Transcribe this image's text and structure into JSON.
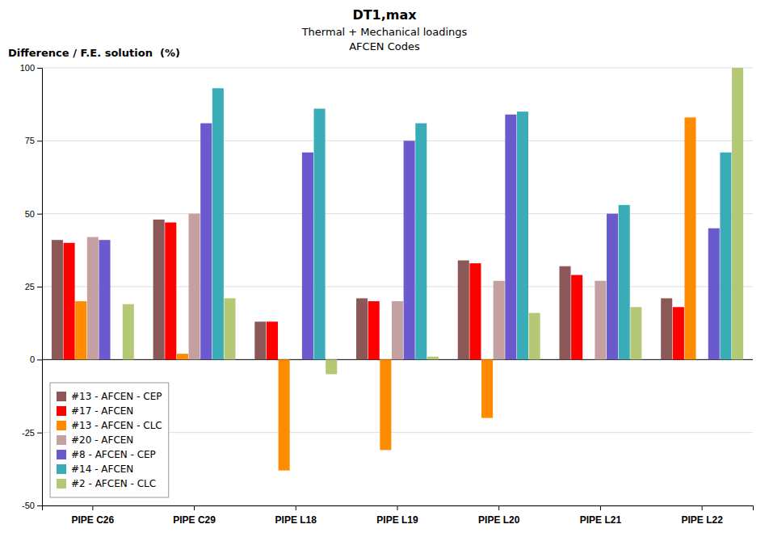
{
  "chart_data": {
    "type": "bar",
    "title": "DT1,max",
    "annotations": [
      "Thermal + Mechanical loadings",
      "AFCEN Codes"
    ],
    "ylabel": "Difference / F.E. solution  (%)",
    "categories": [
      "PIPE C26",
      "PIPE C29",
      "PIPE L18",
      "PIPE L19",
      "PIPE L20",
      "PIPE L21",
      "PIPE L22"
    ],
    "series": [
      {
        "name": "#13 - AFCEN - CEP",
        "color": "#8B5757",
        "values": [
          41,
          48,
          13,
          21,
          34,
          32,
          21
        ]
      },
      {
        "name": "#17 - AFCEN",
        "color": "#FF0000",
        "values": [
          40,
          47,
          13,
          20,
          33,
          29,
          18
        ]
      },
      {
        "name": "#13 - AFCEN - CLC",
        "color": "#FF8C00",
        "values": [
          20,
          2,
          -38,
          -31,
          -20,
          0,
          83
        ]
      },
      {
        "name": "#20 - AFCEN",
        "color": "#C4A0A0",
        "values": [
          42,
          50,
          0,
          20,
          27,
          27,
          0
        ]
      },
      {
        "name": "#8 - AFCEN - CEP",
        "color": "#6A5ACD",
        "values": [
          41,
          81,
          71,
          75,
          84,
          50,
          45
        ]
      },
      {
        "name": "#14 - AFCEN",
        "color": "#3AACB8",
        "values": [
          0,
          93,
          86,
          81,
          85,
          53,
          71
        ]
      },
      {
        "name": "#2 - AFCEN - CLC",
        "color": "#B5C875",
        "values": [
          19,
          21,
          -5,
          1,
          16,
          18,
          100
        ]
      }
    ],
    "ylim": [
      -50,
      100
    ],
    "yticks": [
      -50,
      -25,
      0,
      25,
      50,
      75,
      100
    ],
    "grid": true,
    "legend": "lower left"
  }
}
